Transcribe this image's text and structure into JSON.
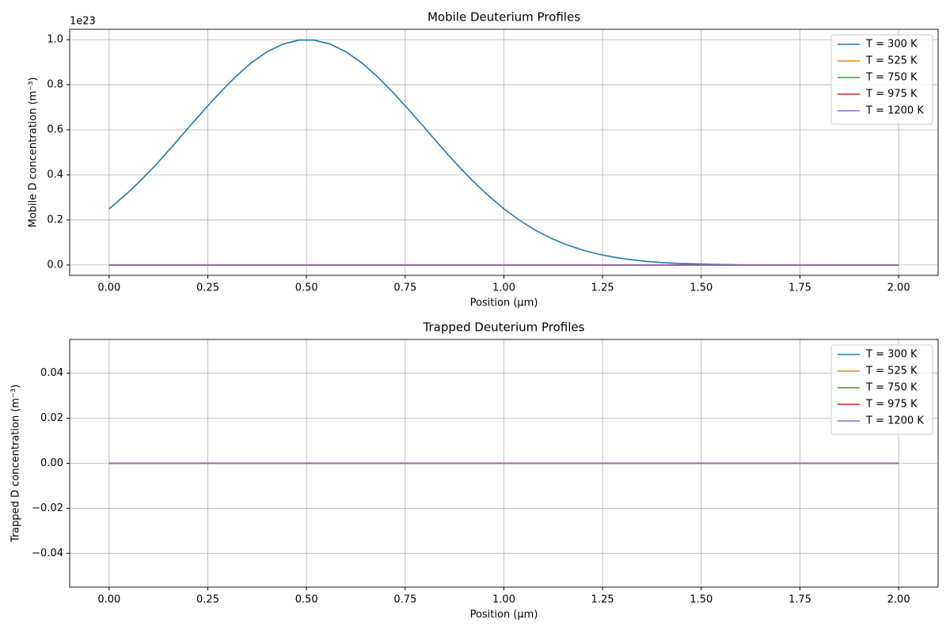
{
  "chart_data": [
    {
      "type": "line",
      "title": "Mobile Deuterium Profiles",
      "xlabel": "Position (μm)",
      "ylabel": "Mobile D concentration (m⁻³)",
      "offset_text": "1e23",
      "x": [
        0,
        0.04,
        0.08,
        0.12,
        0.16,
        0.2,
        0.24,
        0.28,
        0.32,
        0.36,
        0.4,
        0.44,
        0.48,
        0.52,
        0.56,
        0.6,
        0.64,
        0.68,
        0.72,
        0.76,
        0.8,
        0.84,
        0.88,
        0.92,
        0.96,
        1.0,
        1.04,
        1.08,
        1.12,
        1.16,
        1.2,
        1.24,
        1.28,
        1.32,
        1.36,
        1.4,
        1.44,
        1.48,
        1.52,
        1.56,
        1.6,
        1.64,
        1.68,
        1.72,
        1.76,
        1.8,
        1.84,
        1.88,
        1.92,
        1.96,
        2.0
      ],
      "series": [
        {
          "name": "T = 300 K",
          "color": "#1f77b4",
          "values": [
            0.249,
            0.309,
            0.375,
            0.448,
            0.526,
            0.607,
            0.687,
            0.764,
            0.835,
            0.897,
            0.946,
            0.98,
            0.998,
            0.998,
            0.98,
            0.946,
            0.897,
            0.835,
            0.764,
            0.687,
            0.607,
            0.526,
            0.448,
            0.375,
            0.309,
            0.249,
            0.198,
            0.154,
            0.118,
            0.089,
            0.066,
            0.048,
            0.034,
            0.024,
            0.016,
            0.011,
            0.007,
            0.005,
            0.003,
            0.002,
            0.001,
            0.001,
            0,
            0,
            0,
            0,
            0,
            0,
            0,
            0,
            0
          ]
        },
        {
          "name": "T = 525 K",
          "color": "#ff7f0e",
          "values": [
            0,
            0,
            0,
            0,
            0,
            0,
            0,
            0,
            0,
            0,
            0,
            0,
            0,
            0,
            0,
            0,
            0,
            0,
            0,
            0,
            0,
            0,
            0,
            0,
            0,
            0,
            0,
            0,
            0,
            0,
            0,
            0,
            0,
            0,
            0,
            0,
            0,
            0,
            0,
            0,
            0,
            0,
            0,
            0,
            0,
            0,
            0,
            0,
            0,
            0,
            0
          ]
        },
        {
          "name": "T = 750 K",
          "color": "#2ca02c",
          "values": [
            0,
            0,
            0,
            0,
            0,
            0,
            0,
            0,
            0,
            0,
            0,
            0,
            0,
            0,
            0,
            0,
            0,
            0,
            0,
            0,
            0,
            0,
            0,
            0,
            0,
            0,
            0,
            0,
            0,
            0,
            0,
            0,
            0,
            0,
            0,
            0,
            0,
            0,
            0,
            0,
            0,
            0,
            0,
            0,
            0,
            0,
            0,
            0,
            0,
            0,
            0
          ]
        },
        {
          "name": "T = 975 K",
          "color": "#d62728",
          "values": [
            0,
            0,
            0,
            0,
            0,
            0,
            0,
            0,
            0,
            0,
            0,
            0,
            0,
            0,
            0,
            0,
            0,
            0,
            0,
            0,
            0,
            0,
            0,
            0,
            0,
            0,
            0,
            0,
            0,
            0,
            0,
            0,
            0,
            0,
            0,
            0,
            0,
            0,
            0,
            0,
            0,
            0,
            0,
            0,
            0,
            0,
            0,
            0,
            0,
            0,
            0
          ]
        },
        {
          "name": "T = 1200 K",
          "color": "#9467bd",
          "values": [
            0,
            0,
            0,
            0,
            0,
            0,
            0,
            0,
            0,
            0,
            0,
            0,
            0,
            0,
            0,
            0,
            0,
            0,
            0,
            0,
            0,
            0,
            0,
            0,
            0,
            0,
            0,
            0,
            0,
            0,
            0,
            0,
            0,
            0,
            0,
            0,
            0,
            0,
            0,
            0,
            0,
            0,
            0,
            0,
            0,
            0,
            0,
            0,
            0,
            0,
            0
          ]
        }
      ],
      "xlim": [
        -0.1,
        2.1
      ],
      "xticks": [
        {
          "value": 0,
          "label": "0.00"
        },
        {
          "value": 0.25,
          "label": "0.25"
        },
        {
          "value": 0.5,
          "label": "0.50"
        },
        {
          "value": 0.75,
          "label": "0.75"
        },
        {
          "value": 1,
          "label": "1.00"
        },
        {
          "value": 1.25,
          "label": "1.25"
        },
        {
          "value": 1.5,
          "label": "1.50"
        },
        {
          "value": 1.75,
          "label": "1.75"
        },
        {
          "value": 2,
          "label": "2.00"
        }
      ],
      "ylim": [
        -0.046,
        1.046
      ],
      "yticks": [
        {
          "value": 0,
          "label": "0.0"
        },
        {
          "value": 0.2,
          "label": "0.2"
        },
        {
          "value": 0.4,
          "label": "0.4"
        },
        {
          "value": 0.6,
          "label": "0.6"
        },
        {
          "value": 0.8,
          "label": "0.8"
        },
        {
          "value": 1,
          "label": "1.0"
        }
      ],
      "grid": true,
      "legend": "upper right"
    },
    {
      "type": "line",
      "title": "Trapped Deuterium Profiles",
      "xlabel": "Position (μm)",
      "ylabel": "Trapped D concentration (m⁻³)",
      "x": [
        0,
        0.04,
        0.08,
        0.12,
        0.16,
        0.2,
        0.24,
        0.28,
        0.32,
        0.36,
        0.4,
        0.44,
        0.48,
        0.52,
        0.56,
        0.6,
        0.64,
        0.68,
        0.72,
        0.76,
        0.8,
        0.84,
        0.88,
        0.92,
        0.96,
        1.0,
        1.04,
        1.08,
        1.12,
        1.16,
        1.2,
        1.24,
        1.28,
        1.32,
        1.36,
        1.4,
        1.44,
        1.48,
        1.52,
        1.56,
        1.6,
        1.64,
        1.68,
        1.72,
        1.76,
        1.8,
        1.84,
        1.88,
        1.92,
        1.96,
        2.0
      ],
      "series": [
        {
          "name": "T = 300 K",
          "color": "#1f77b4",
          "values": [
            0,
            0,
            0,
            0,
            0,
            0,
            0,
            0,
            0,
            0,
            0,
            0,
            0,
            0,
            0,
            0,
            0,
            0,
            0,
            0,
            0,
            0,
            0,
            0,
            0,
            0,
            0,
            0,
            0,
            0,
            0,
            0,
            0,
            0,
            0,
            0,
            0,
            0,
            0,
            0,
            0,
            0,
            0,
            0,
            0,
            0,
            0,
            0,
            0,
            0,
            0
          ]
        },
        {
          "name": "T = 525 K",
          "color": "#ff7f0e",
          "values": [
            0,
            0,
            0,
            0,
            0,
            0,
            0,
            0,
            0,
            0,
            0,
            0,
            0,
            0,
            0,
            0,
            0,
            0,
            0,
            0,
            0,
            0,
            0,
            0,
            0,
            0,
            0,
            0,
            0,
            0,
            0,
            0,
            0,
            0,
            0,
            0,
            0,
            0,
            0,
            0,
            0,
            0,
            0,
            0,
            0,
            0,
            0,
            0,
            0,
            0,
            0
          ]
        },
        {
          "name": "T = 750 K",
          "color": "#2ca02c",
          "values": [
            0,
            0,
            0,
            0,
            0,
            0,
            0,
            0,
            0,
            0,
            0,
            0,
            0,
            0,
            0,
            0,
            0,
            0,
            0,
            0,
            0,
            0,
            0,
            0,
            0,
            0,
            0,
            0,
            0,
            0,
            0,
            0,
            0,
            0,
            0,
            0,
            0,
            0,
            0,
            0,
            0,
            0,
            0,
            0,
            0,
            0,
            0,
            0,
            0,
            0,
            0
          ]
        },
        {
          "name": "T = 975 K",
          "color": "#d62728",
          "values": [
            0,
            0,
            0,
            0,
            0,
            0,
            0,
            0,
            0,
            0,
            0,
            0,
            0,
            0,
            0,
            0,
            0,
            0,
            0,
            0,
            0,
            0,
            0,
            0,
            0,
            0,
            0,
            0,
            0,
            0,
            0,
            0,
            0,
            0,
            0,
            0,
            0,
            0,
            0,
            0,
            0,
            0,
            0,
            0,
            0,
            0,
            0,
            0,
            0,
            0,
            0
          ]
        },
        {
          "name": "T = 1200 K",
          "color": "#9467bd",
          "values": [
            0,
            0,
            0,
            0,
            0,
            0,
            0,
            0,
            0,
            0,
            0,
            0,
            0,
            0,
            0,
            0,
            0,
            0,
            0,
            0,
            0,
            0,
            0,
            0,
            0,
            0,
            0,
            0,
            0,
            0,
            0,
            0,
            0,
            0,
            0,
            0,
            0,
            0,
            0,
            0,
            0,
            0,
            0,
            0,
            0,
            0,
            0,
            0,
            0,
            0,
            0
          ]
        }
      ],
      "xlim": [
        -0.1,
        2.1
      ],
      "xticks": [
        {
          "value": 0,
          "label": "0.00"
        },
        {
          "value": 0.25,
          "label": "0.25"
        },
        {
          "value": 0.5,
          "label": "0.50"
        },
        {
          "value": 0.75,
          "label": "0.75"
        },
        {
          "value": 1,
          "label": "1.00"
        },
        {
          "value": 1.25,
          "label": "1.25"
        },
        {
          "value": 1.5,
          "label": "1.50"
        },
        {
          "value": 1.75,
          "label": "1.75"
        },
        {
          "value": 2,
          "label": "2.00"
        }
      ],
      "ylim": [
        -0.055,
        0.055
      ],
      "yticks": [
        {
          "value": -0.04,
          "label": "−0.04"
        },
        {
          "value": -0.02,
          "label": "−0.02"
        },
        {
          "value": 0,
          "label": "0.00"
        },
        {
          "value": 0.02,
          "label": "0.02"
        },
        {
          "value": 0.04,
          "label": "0.04"
        }
      ],
      "grid": true,
      "legend": "upper right"
    }
  ]
}
